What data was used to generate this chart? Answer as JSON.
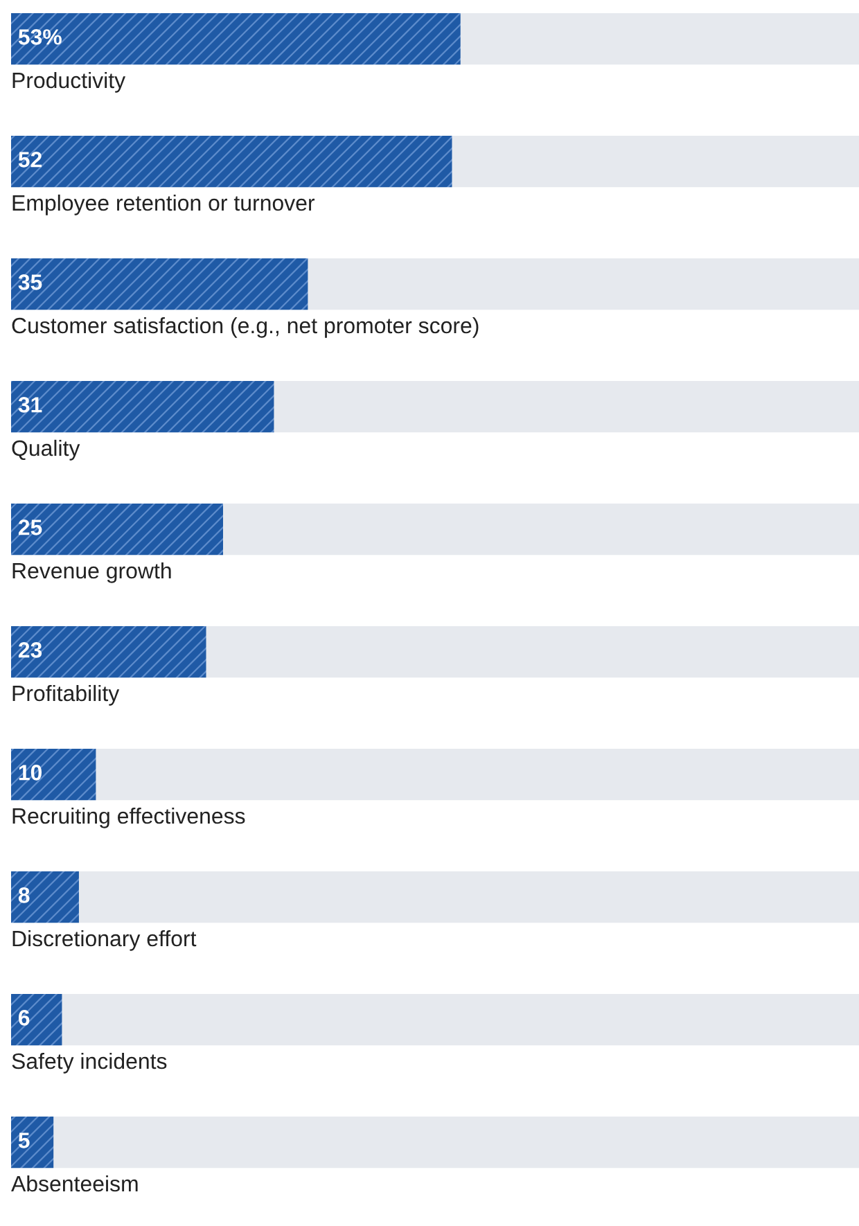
{
  "chart_data": {
    "type": "bar",
    "orientation": "horizontal",
    "categories": [
      "Productivity",
      "Employee retention or turnover",
      "Customer satisfaction (e.g., net promoter score)",
      "Quality",
      "Revenue growth",
      "Profitability",
      "Recruiting effectiveness",
      "Discretionary effort",
      "Safety incidents",
      "Absenteeism"
    ],
    "values": [
      53,
      52,
      35,
      31,
      25,
      23,
      10,
      8,
      6,
      5
    ],
    "value_labels": [
      "53%",
      "52",
      "35",
      "31",
      "25",
      "23",
      "10",
      "8",
      "6",
      "5"
    ],
    "color": "#1f5aa6",
    "xlim": [
      0,
      100
    ]
  }
}
